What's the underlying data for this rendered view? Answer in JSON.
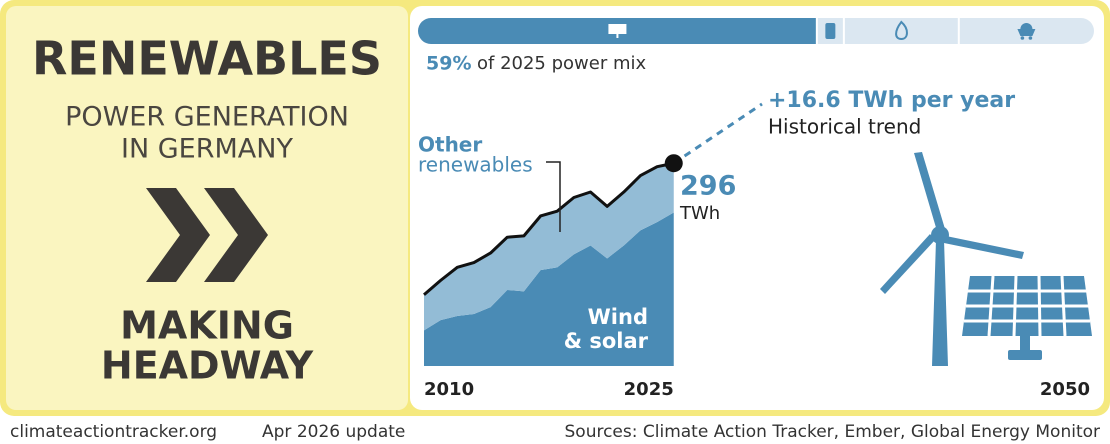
{
  "panel": {
    "title": "RENEWABLES",
    "subtitle_lines": [
      "POWER GENERATION",
      "IN GERMANY"
    ],
    "status_lines": [
      "MAKING",
      "HEADWAY"
    ]
  },
  "mix": {
    "values": [
      59,
      4,
      17,
      20
    ],
    "value_labels": [
      "59%",
      null,
      null,
      null
    ],
    "colors": [
      "#4a8bb5",
      "#dbe7f1",
      "#dbe7f1",
      "#dbe7f1"
    ],
    "caption": "of 2025 power mix"
  },
  "chart_data": {
    "type": "area",
    "stacked": true,
    "x": [
      2010,
      2011,
      2012,
      2013,
      2014,
      2015,
      2016,
      2017,
      2018,
      2019,
      2020,
      2021,
      2022,
      2023,
      2024,
      2025
    ],
    "series": [
      {
        "name_lines": [
          "Wind",
          "& solar"
        ],
        "color": "#4a8bb5",
        "values": [
          52,
          67,
          73,
          76,
          86,
          111,
          109,
          140,
          144,
          163,
          176,
          157,
          176,
          198,
          210,
          224
        ]
      },
      {
        "name_lines": [
          "Other",
          "renewables"
        ],
        "color": "#93bcd6",
        "values": [
          52,
          58,
          71,
          75,
          79,
          77,
          81,
          79,
          82,
          83,
          78,
          76,
          78,
          80,
          81,
          72
        ]
      }
    ],
    "xlim": [
      2010,
      2050
    ],
    "ylim": [
      0,
      400
    ],
    "xticks": [
      2010,
      2025,
      2050
    ],
    "total_value": 296,
    "total_unit": "TWh",
    "trend_label": "+16.6 TWh per year",
    "trend_caption": "Historical trend"
  },
  "footer": {
    "site": "climateactiontracker.org",
    "update": "Apr 2026 update",
    "sources": "Sources: Climate Action Tracker, Ember, Global Energy Monitor"
  }
}
